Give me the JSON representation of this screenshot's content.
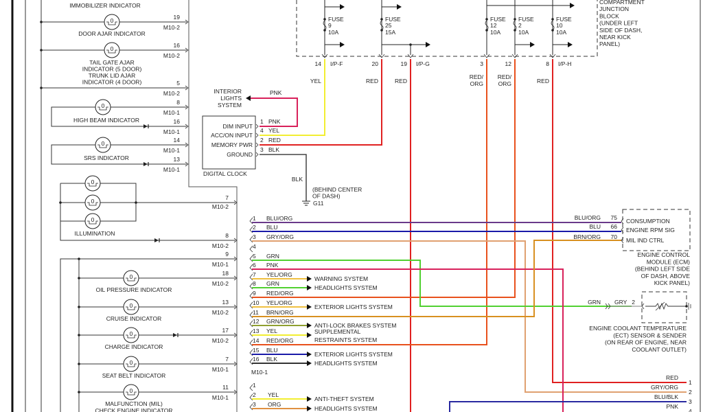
{
  "indicators": [
    {
      "label": [
        "IMMOBILIZER INDICATOR"
      ],
      "pin": "",
      "connector": ""
    },
    {
      "label": [
        "DOOR AJAR INDICATOR"
      ],
      "pin": "19",
      "connector": "M10-2"
    },
    {
      "label": [
        "TAIL GATE AJAR",
        "INDICATOR    (5 DOOR)",
        "TRUNK LID AJAR",
        "INDICATOR    (4 DOOR)"
      ],
      "pin": "16",
      "connector": "M10-2"
    },
    {
      "label": [],
      "pin": "5",
      "connector": "M10-2"
    },
    {
      "label": [
        "HIGH BEAM INDICATOR"
      ],
      "pin": "8",
      "connector": "M10-1"
    },
    {
      "label": [],
      "pin": "16",
      "connector": "M10-1"
    },
    {
      "label": [
        "SRS INDICATOR"
      ],
      "pin": "14",
      "connector": "M10-1"
    },
    {
      "label": [],
      "pin": "13",
      "connector": "M10-1"
    },
    {
      "label": [],
      "pin": "7",
      "connector": "M10-2"
    },
    {
      "label": [
        "ILLUMINATION"
      ],
      "pin": "8",
      "connector": "M10-2"
    },
    {
      "label": [],
      "pin": "9",
      "connector": "M10-1"
    },
    {
      "label": [
        "OIL PRESSURE INDICATOR"
      ],
      "pin": "18",
      "connector": "M10-2"
    },
    {
      "label": [
        "CRUISE INDICATOR"
      ],
      "pin": "13",
      "connector": "M10-2"
    },
    {
      "label": [
        "CHARGE INDICATOR"
      ],
      "pin": "17",
      "connector": "M10-2"
    },
    {
      "label": [
        "SEAT BELT INDICATOR"
      ],
      "pin": "7",
      "connector": "M10-1"
    },
    {
      "label": [
        "MALFUNCTION (MIL)",
        "CHECK ENGINE INDICATOR"
      ],
      "pin": "11",
      "connector": "M10-1"
    }
  ],
  "clock": {
    "title": "DIGITAL CLOCK",
    "pins": [
      {
        "name": "DIM INPUT",
        "pin": "1",
        "color": "PNK"
      },
      {
        "name": "ACC/ON INPUT",
        "pin": "4",
        "color": "YEL"
      },
      {
        "name": "MEMORY PWR",
        "pin": "2",
        "color": "RED"
      },
      {
        "name": "GROUND",
        "pin": "3",
        "color": "BLK"
      }
    ],
    "interior_lights": [
      "INTERIOR",
      "LIGHTS",
      "SYSTEM"
    ],
    "interior_wire": "PNK",
    "ground_wire": "BLK",
    "ground_note": [
      "(BEHIND CENTER",
      "OF DASH)"
    ],
    "ground_id": "G11"
  },
  "junction_block": {
    "label": [
      "COMPARTMENT",
      "JUNCTION",
      "BLOCK",
      "(UNDER LEFT",
      "SIDE OF DASH,",
      "NEAR KICK",
      "PANEL)"
    ],
    "fuses": [
      {
        "title": "FUSE",
        "number": "9",
        "rating": "10A"
      },
      {
        "title": "FUSE",
        "number": "25",
        "rating": "15A"
      },
      {
        "title": "FUSE",
        "number": "12",
        "rating": "10A"
      },
      {
        "title": "FUSE",
        "number": "2",
        "rating": "10A"
      },
      {
        "title": "FUSE",
        "number": "10",
        "rating": "10A"
      }
    ],
    "terminals": [
      {
        "pin": "14",
        "connector": "I/P-F",
        "wire": [
          "YEL"
        ]
      },
      {
        "pin": "20",
        "connector": "",
        "wire": [
          "RED"
        ]
      },
      {
        "pin": "19",
        "connector": "I/P-G",
        "wire": [
          "RED"
        ]
      },
      {
        "pin": "3",
        "connector": "",
        "wire": [
          "RED/",
          "ORG"
        ]
      },
      {
        "pin": "12",
        "connector": "",
        "wire": [
          "RED/",
          "ORG"
        ]
      },
      {
        "pin": "8",
        "connector": "I/P-H",
        "wire": [
          "RED"
        ]
      }
    ]
  },
  "m10_1": {
    "label": "M10-1",
    "pins": [
      {
        "pin": "1",
        "color": "BLU/ORG",
        "dest": ""
      },
      {
        "pin": "2",
        "color": "BLU",
        "dest": ""
      },
      {
        "pin": "3",
        "color": "GRY/ORG",
        "dest": ""
      },
      {
        "pin": "4",
        "color": "",
        "dest": ""
      },
      {
        "pin": "5",
        "color": "GRN",
        "dest": ""
      },
      {
        "pin": "6",
        "color": "PNK",
        "dest": ""
      },
      {
        "pin": "7",
        "color": "YEL/ORG",
        "dest": "WARNING SYSTEM"
      },
      {
        "pin": "8",
        "color": "GRN",
        "dest": "HEADLIGHTS SYSTEM"
      },
      {
        "pin": "9",
        "color": "RED/ORG",
        "dest": ""
      },
      {
        "pin": "10",
        "color": "YEL/ORG",
        "dest": "EXTERIOR LIGHTS SYSTEM"
      },
      {
        "pin": "11",
        "color": "BRN/ORG",
        "dest": ""
      },
      {
        "pin": "12",
        "color": "GRN/ORG",
        "dest": "ANTI-LOCK BRAKES SYSTEM"
      },
      {
        "pin": "13",
        "color": "YEL",
        "dest": "SUPPLEMENTAL"
      },
      {
        "pin": "14",
        "color": "RED/ORG",
        "dest": "RESTRAINTS SYSTEM"
      },
      {
        "pin": "15",
        "color": "BLU",
        "dest": "EXTERIOR LIGHTS SYSTEM"
      },
      {
        "pin": "16",
        "color": "BLK",
        "dest": "HEADLIGHTS SYSTEM"
      }
    ]
  },
  "m10_2_pins": [
    {
      "pin": "1",
      "color": "",
      "dest": ""
    },
    {
      "pin": "2",
      "color": "YEL",
      "dest": "ANTI-THEFT SYSTEM"
    },
    {
      "pin": "3",
      "color": "ORG",
      "dest": "HEADLIGHTS SYSTEM"
    }
  ],
  "ecm": {
    "pins": [
      {
        "wire": "BLU/ORG",
        "pin": "75",
        "name": "CONSUMPTION"
      },
      {
        "wire": "BLU",
        "pin": "66",
        "name": "ENGINE RPM SIG"
      },
      {
        "wire": "BRN/ORG",
        "pin": "70",
        "name": "MIL IND CTRL"
      }
    ],
    "label": [
      "ENGINE CONTROL",
      "MODULE (ECM)",
      "(BEHIND LEFT SIDE",
      "OF DASH, ABOVE",
      "KICK PANEL)"
    ]
  },
  "ect": {
    "wire_in": "GRN",
    "wire_out": "GRY",
    "pin": "2",
    "label": [
      "ENGINE COOLANT TEMPERATURE",
      "(ECT) SENSOR & SENDER",
      "(ON REAR OF ENGINE, NEAR",
      "COOLANT OUTLET)"
    ]
  },
  "outputs": [
    {
      "wire": "RED",
      "pin": "1"
    },
    {
      "wire": "GRY/ORG",
      "pin": "2"
    },
    {
      "wire": "BLU/BLK",
      "pin": "3"
    },
    {
      "wire": "PNK",
      "pin": "4"
    }
  ],
  "wire_colors": {
    "RED": "#e02020",
    "RED/ORG": "#e8501c",
    "YEL": "#f2ee30",
    "PNK": "#d8205a",
    "BLK": "#333333",
    "BLU": "#1a1aa8",
    "BLU/ORG": "#6a3a8a",
    "GRY/ORG": "#e0a070",
    "GRN": "#50d030",
    "YEL/ORG": "#f0c040",
    "BRN/ORG": "#d89020",
    "GRN/ORG": "#90a030",
    "ORG": "#e09040",
    "GRY": "#999999",
    "BLU/BLK": "#2828a0"
  }
}
